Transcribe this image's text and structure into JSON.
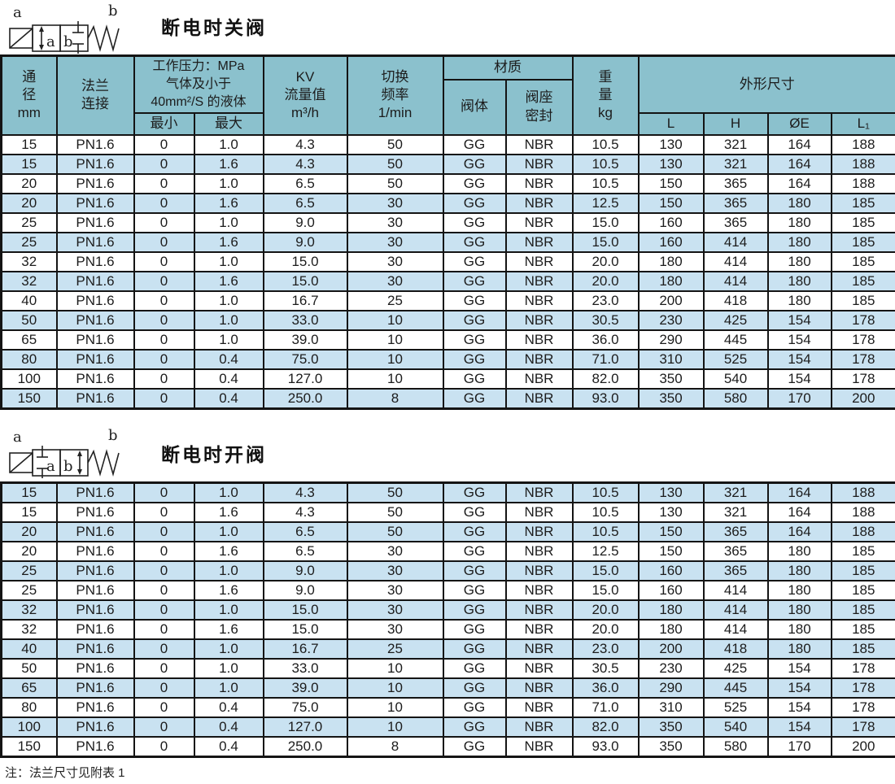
{
  "colors": {
    "header_bg": "#8bc1cd",
    "row_alt": "#c9e2f1",
    "border": "#141414",
    "text": "#1c1c1c"
  },
  "sections": [
    {
      "title": "断电时关阀",
      "symbol": {
        "left_label": "a",
        "right_label": "b",
        "box1_label": "a",
        "box2_label": "b"
      }
    },
    {
      "title": "断电时开阀",
      "symbol": {
        "left_label": "a",
        "right_label": "b",
        "box1_label": "a",
        "box2_label": "b"
      }
    }
  ],
  "table": {
    "header": {
      "diameter": [
        "通",
        "径",
        "mm"
      ],
      "flange": [
        "法兰",
        "连接"
      ],
      "pressure": [
        "工作压力：MPa",
        "气体及小于",
        "40mm²/S 的液体"
      ],
      "pressure_min": "最小",
      "pressure_max": "最大",
      "kv": [
        "KV",
        "流量值",
        "m³/h"
      ],
      "freq": [
        "切换",
        "频率",
        "1/min"
      ],
      "material": "材质",
      "material_body": "阀体",
      "material_seat": [
        "阀座",
        "密封"
      ],
      "weight": [
        "重",
        "量",
        "kg"
      ],
      "dims": "外形尺寸",
      "dims_cols": [
        "L",
        "H",
        "ØE",
        "L₁"
      ]
    },
    "rows": [
      [
        "15",
        "PN1.6",
        "0",
        "1.0",
        "4.3",
        "50",
        "GG",
        "NBR",
        "10.5",
        "130",
        "321",
        "164",
        "188"
      ],
      [
        "15",
        "PN1.6",
        "0",
        "1.6",
        "4.3",
        "50",
        "GG",
        "NBR",
        "10.5",
        "130",
        "321",
        "164",
        "188"
      ],
      [
        "20",
        "PN1.6",
        "0",
        "1.0",
        "6.5",
        "50",
        "GG",
        "NBR",
        "10.5",
        "150",
        "365",
        "164",
        "188"
      ],
      [
        "20",
        "PN1.6",
        "0",
        "1.6",
        "6.5",
        "30",
        "GG",
        "NBR",
        "12.5",
        "150",
        "365",
        "180",
        "185"
      ],
      [
        "25",
        "PN1.6",
        "0",
        "1.0",
        "9.0",
        "30",
        "GG",
        "NBR",
        "15.0",
        "160",
        "365",
        "180",
        "185"
      ],
      [
        "25",
        "PN1.6",
        "0",
        "1.6",
        "9.0",
        "30",
        "GG",
        "NBR",
        "15.0",
        "160",
        "414",
        "180",
        "185"
      ],
      [
        "32",
        "PN1.6",
        "0",
        "1.0",
        "15.0",
        "30",
        "GG",
        "NBR",
        "20.0",
        "180",
        "414",
        "180",
        "185"
      ],
      [
        "32",
        "PN1.6",
        "0",
        "1.6",
        "15.0",
        "30",
        "GG",
        "NBR",
        "20.0",
        "180",
        "414",
        "180",
        "185"
      ],
      [
        "40",
        "PN1.6",
        "0",
        "1.0",
        "16.7",
        "25",
        "GG",
        "NBR",
        "23.0",
        "200",
        "418",
        "180",
        "185"
      ],
      [
        "50",
        "PN1.6",
        "0",
        "1.0",
        "33.0",
        "10",
        "GG",
        "NBR",
        "30.5",
        "230",
        "425",
        "154",
        "178"
      ],
      [
        "65",
        "PN1.6",
        "0",
        "1.0",
        "39.0",
        "10",
        "GG",
        "NBR",
        "36.0",
        "290",
        "445",
        "154",
        "178"
      ],
      [
        "80",
        "PN1.6",
        "0",
        "0.4",
        "75.0",
        "10",
        "GG",
        "NBR",
        "71.0",
        "310",
        "525",
        "154",
        "178"
      ],
      [
        "100",
        "PN1.6",
        "0",
        "0.4",
        "127.0",
        "10",
        "GG",
        "NBR",
        "82.0",
        "350",
        "540",
        "154",
        "178"
      ],
      [
        "150",
        "PN1.6",
        "0",
        "0.4",
        "250.0",
        "8",
        "GG",
        "NBR",
        "93.0",
        "350",
        "580",
        "170",
        "200"
      ]
    ]
  },
  "note": "注：法兰尺寸见附表 1"
}
